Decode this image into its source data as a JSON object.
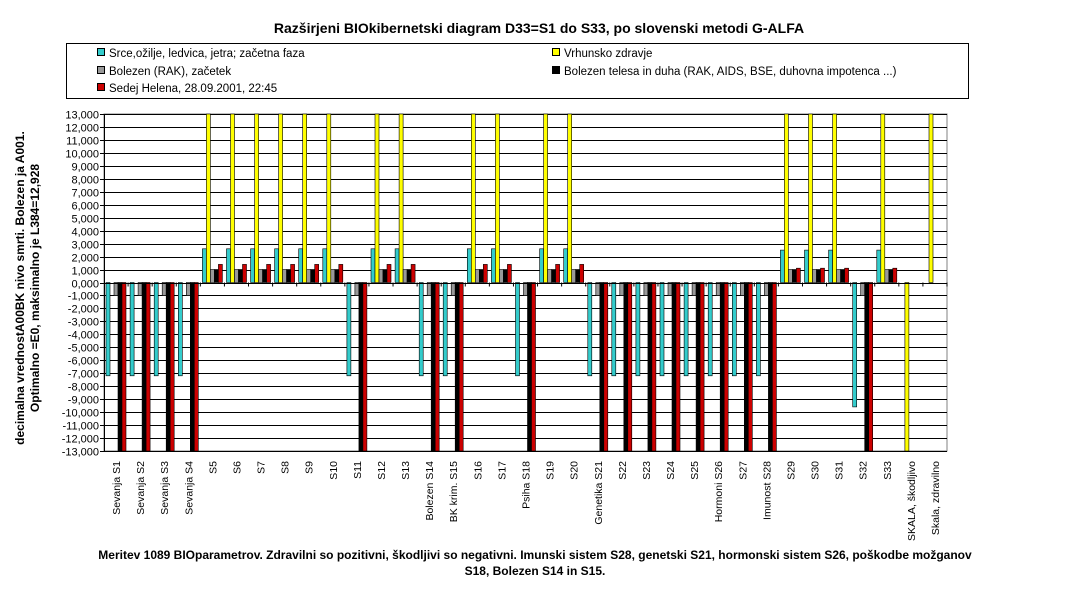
{
  "title": "Razširjeni BIOkibernetski diagram  D33=S1 do S33, po slovenski metodi G-ALFA",
  "ylabel_lines": [
    "decimalna vrednostA00BK nivo smrti. Bolezen ja A001.",
    "Optimalno =E0, maksimalno je L384=12,928"
  ],
  "footer": "Meritev 1089 BIOparametrov. Zdravilni so pozitivni, škodljivi so negativni. Imunski sistem S28, genetski S21, hormonski sistem S26, poškodbe možganov S18, Bolezen S14 in S15.",
  "legend": [
    {
      "label": "Srce,ožilje, ledvica, jetra; začetna faza",
      "color": "#33CCCC"
    },
    {
      "label": "Vrhunsko zdravje",
      "color": "#FFFF00"
    },
    {
      "label": "Bolezen (RAK), začetek",
      "color": "#999999"
    },
    {
      "label": "Bolezen telesa in duha (RAK, AIDS, BSE, duhovna impotenca ...)",
      "color": "#000000"
    },
    {
      "label": "Sedej Helena, 28.09.2001, 22:45",
      "color": "#CC0000"
    }
  ],
  "chart_data": {
    "type": "bar",
    "categories": [
      "Sevanja S1",
      "Sevanja S2",
      "Sevanja S3",
      "Sevanja S4",
      "S5",
      "S6",
      "S7",
      "S8",
      "S9",
      "S10",
      "S11",
      "S12",
      "S13",
      "Bolezen S14",
      "BK krim. S15",
      "S16",
      "S17",
      "Psiha S18",
      "S19",
      "S20",
      "Genetika S21",
      "S22",
      "S23",
      "S24",
      "S25",
      "Hormoni S26",
      "S27",
      "Imunost S28",
      "S29",
      "S30",
      "S31",
      "S32",
      "S33",
      "SKALA, škodljivo",
      "Skala, zdravilno"
    ],
    "ylim": [
      -13000,
      13000
    ],
    "ytick_step": 1000,
    "ytick_labels": [
      "13,000",
      "12,000",
      "11,000",
      "10,000",
      "9,000",
      "8,000",
      "7,000",
      "6,000",
      "5,000",
      "4,000",
      "3,000",
      "2,000",
      "1,000",
      "0,000",
      "-1,000",
      "-2,000",
      "-3,000",
      "-4,000",
      "-5,000",
      "-6,000",
      "-7,000",
      "-8,000",
      "-9,000",
      "-10,000",
      "-11,000",
      "-12,000",
      "-13,000"
    ],
    "grid": true,
    "series": [
      {
        "name": "Srce,ožilje, ledvica, jetra; začetna faza",
        "color": "#33CCCC",
        "values": [
          -7200,
          -7200,
          -7200,
          -7200,
          2600,
          2600,
          2600,
          2600,
          2600,
          2600,
          -7200,
          2600,
          2600,
          -7200,
          -7200,
          2600,
          2600,
          -7200,
          2600,
          2600,
          -7200,
          -7200,
          -7200,
          -7200,
          -7200,
          -7200,
          -7200,
          -7200,
          2500,
          2500,
          2500,
          -9600,
          2500,
          0,
          0
        ]
      },
      {
        "name": "Vrhunsko zdravje",
        "color": "#FFFF00",
        "values": [
          0,
          0,
          0,
          0,
          13000,
          13000,
          13000,
          13000,
          13000,
          13000,
          0,
          13000,
          13000,
          0,
          0,
          13000,
          13000,
          0,
          13000,
          13000,
          0,
          0,
          0,
          0,
          0,
          0,
          0,
          0,
          13000,
          13000,
          13000,
          0,
          13000,
          -13000,
          13000
        ]
      },
      {
        "name": "Bolezen (RAK), začetek",
        "color": "#999999",
        "values": [
          -1000,
          -1000,
          -1000,
          -1000,
          1000,
          1000,
          1000,
          1000,
          1000,
          1000,
          -1000,
          1000,
          1000,
          -1000,
          -1000,
          1000,
          1000,
          -1000,
          1000,
          1000,
          -1000,
          -1000,
          -1000,
          -1000,
          -1000,
          -1000,
          -1000,
          -1000,
          1000,
          1000,
          1000,
          -1000,
          1000,
          0,
          0
        ]
      },
      {
        "name": "Bolezen telesa in duha (RAK, AIDS, BSE, duhovna impotenca ...)",
        "color": "#000000",
        "values": [
          -13000,
          -13000,
          -13000,
          -13000,
          1000,
          1000,
          1000,
          1000,
          1000,
          1000,
          -13000,
          1000,
          1000,
          -13000,
          -13000,
          1000,
          1000,
          -13000,
          1000,
          1000,
          -13000,
          -13000,
          -13000,
          -13000,
          -13000,
          -13000,
          -13000,
          -13000,
          1000,
          1000,
          1000,
          -13000,
          1000,
          0,
          0
        ]
      },
      {
        "name": "Sedej Helena, 28.09.2001, 22:45",
        "color": "#CC0000",
        "values": [
          -13000,
          -13000,
          -13000,
          -13000,
          1400,
          1400,
          1400,
          1400,
          1400,
          1400,
          -13000,
          1400,
          1400,
          -13000,
          -13000,
          1400,
          1400,
          -13000,
          1400,
          1400,
          -13000,
          -13000,
          -13000,
          -13000,
          -13000,
          -13000,
          -13000,
          -13000,
          1100,
          1100,
          1100,
          -13000,
          1100,
          0,
          0
        ]
      }
    ]
  }
}
